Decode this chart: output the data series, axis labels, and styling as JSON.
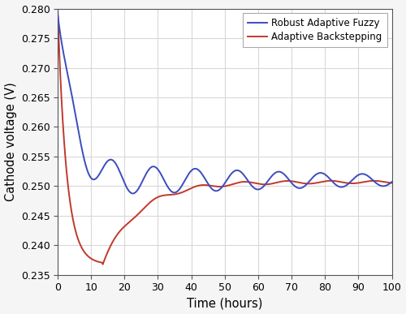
{
  "title": "",
  "xlabel": "Time (hours)",
  "ylabel": "Cathode voltage (V)",
  "xlim": [
    0,
    100
  ],
  "ylim": [
    0.235,
    0.28
  ],
  "yticks": [
    0.235,
    0.24,
    0.245,
    0.25,
    0.255,
    0.26,
    0.265,
    0.27,
    0.275,
    0.28
  ],
  "xticks": [
    0,
    10,
    20,
    30,
    40,
    50,
    60,
    70,
    80,
    90,
    100
  ],
  "blue_color": "#3b4cc0",
  "red_color": "#c0392b",
  "legend_labels": [
    "Robust Adaptive Fuzzy",
    "Adaptive Backstepping"
  ],
  "bg_color": "#f5f5f5",
  "plot_bg": "#ffffff",
  "grid_color": "#d8d8d8"
}
